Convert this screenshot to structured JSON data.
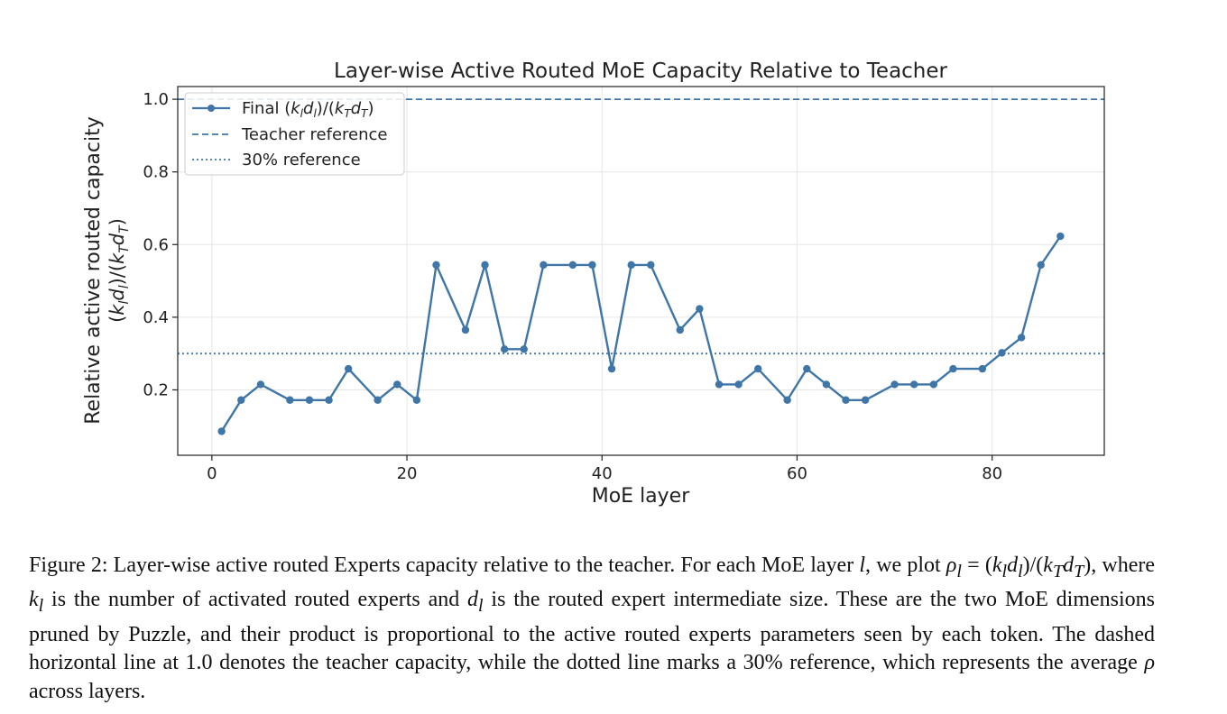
{
  "chart_data": {
    "type": "line",
    "title": "Layer-wise Active Routed MoE Capacity Relative to Teacher",
    "xlabel": "MoE layer",
    "ylabel_line1": "Relative active routed capacity",
    "ylabel_line2": "(k_l d_l)/(k_T d_T)",
    "xlim": [
      -3.5,
      91.5
    ],
    "ylim": [
      0.02,
      1.035
    ],
    "xticks": [
      0,
      20,
      40,
      60,
      80
    ],
    "yticks": [
      0.2,
      0.4,
      0.6,
      0.8,
      1.0
    ],
    "xtick_labels": [
      "0",
      "20",
      "40",
      "60",
      "80"
    ],
    "ytick_labels": [
      "0.2",
      "0.4",
      "0.6",
      "0.8",
      "1.0"
    ],
    "grid": true,
    "legend_position": "top-left",
    "series": [
      {
        "name": "Final (k_l d_l)/(k_T d_T)",
        "style": "solid-markers",
        "color": "#3f76a7",
        "x": [
          1,
          3,
          5,
          8,
          10,
          12,
          14,
          17,
          19,
          21,
          23,
          26,
          28,
          30,
          32,
          34,
          37,
          39,
          41,
          43,
          45,
          48,
          50,
          52,
          54,
          56,
          59,
          61,
          63,
          65,
          67,
          70,
          72,
          74,
          76,
          79,
          81,
          83,
          85,
          87
        ],
        "y": [
          0.086,
          0.172,
          0.215,
          0.172,
          0.172,
          0.172,
          0.258,
          0.172,
          0.215,
          0.172,
          0.544,
          0.365,
          0.544,
          0.312,
          0.312,
          0.544,
          0.544,
          0.544,
          0.258,
          0.544,
          0.544,
          0.365,
          0.423,
          0.215,
          0.215,
          0.258,
          0.172,
          0.258,
          0.215,
          0.172,
          0.172,
          0.215,
          0.215,
          0.215,
          0.258,
          0.258,
          0.302,
          0.344,
          0.544,
          0.623
        ]
      },
      {
        "name": "Teacher reference",
        "style": "dashed",
        "color": "#3f76a7",
        "y": 1.0
      },
      {
        "name": "30% reference",
        "style": "dotted",
        "color": "#3f76a7",
        "y": 0.3
      }
    ]
  },
  "caption": {
    "t1": "Figure 2: Layer-wise active routed Experts capacity relative to the teacher. For each MoE layer ",
    "l1": "l",
    "t2": ", we plot ",
    "rho_l": "ρ",
    "sub_l1": "l",
    "t3": " = (",
    "k1": "k",
    "sub_l2": "l",
    "d1": "d",
    "sub_l3": "l",
    "t4": ")/(",
    "k2": "k",
    "sub_T1": "T",
    "d2": "d",
    "sub_T2": "T",
    "t5": "), where ",
    "k3": "k",
    "sub_l4": "l",
    "t6": " is the number of activated routed experts and ",
    "d3": "d",
    "sub_l5": "l",
    "t7": " is the routed expert intermediate size. These are the two MoE dimensions pruned by Puzzle, and their product is proportional to the active routed experts parameters seen by each token. The dashed horizontal line at 1.0 denotes the teacher capacity, while the dotted line marks a 30% reference, which represents the average ",
    "rho2": "ρ",
    "t8": " across layers."
  }
}
